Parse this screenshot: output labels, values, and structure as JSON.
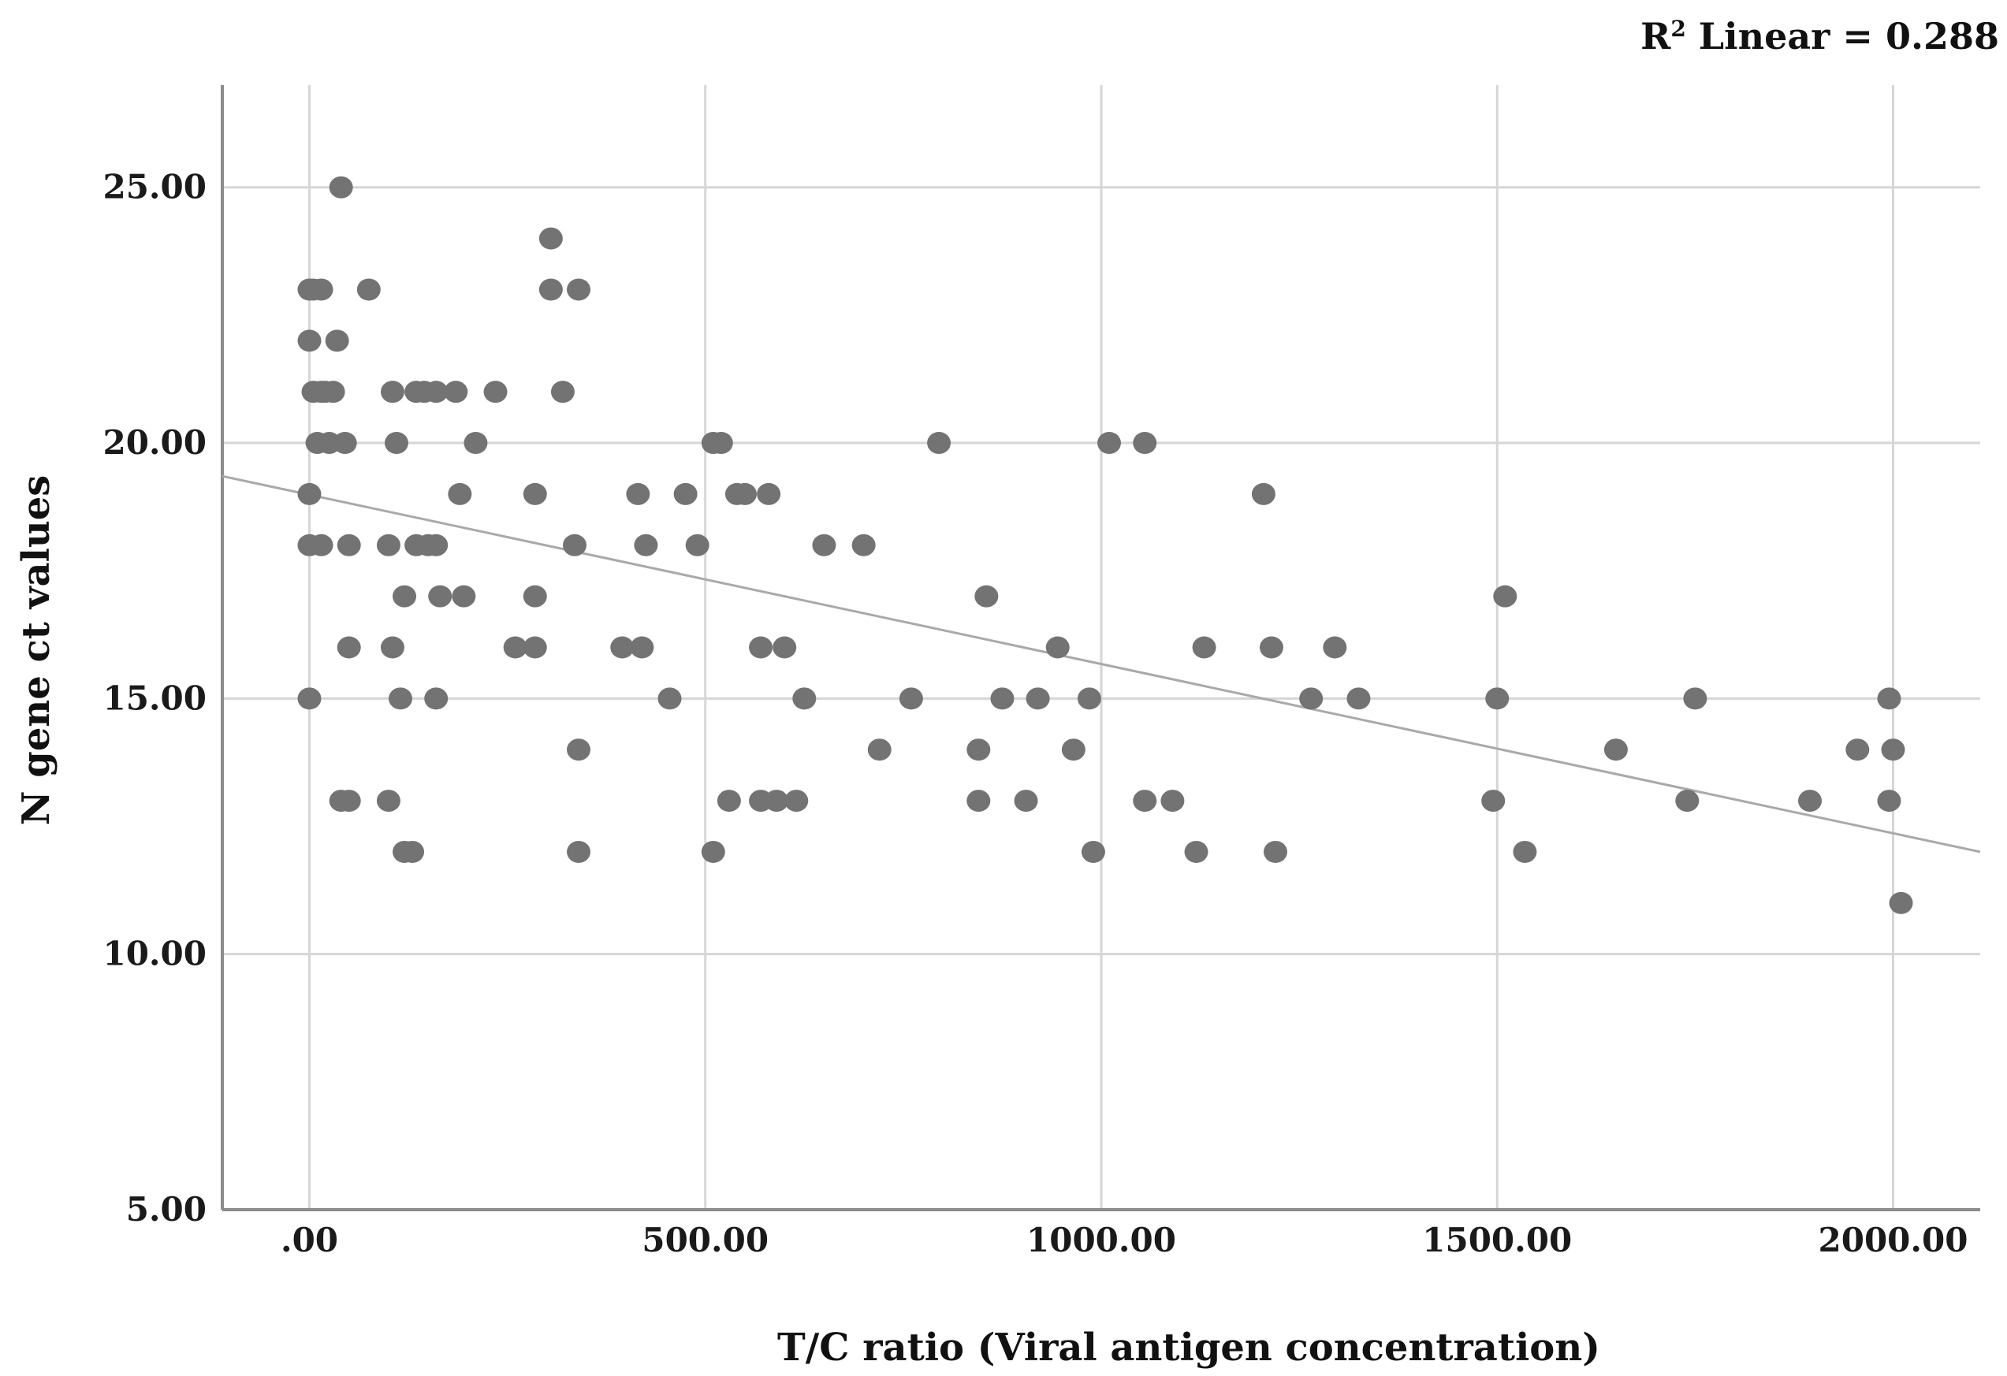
{
  "chart_data": {
    "type": "scatter",
    "title": "",
    "xlabel": "T/C ratio (Viral antigen concentration)",
    "ylabel": "N gene ct values",
    "xlim": [
      -110,
      2110
    ],
    "ylim": [
      5,
      27
    ],
    "xticks": [
      0,
      500,
      1000,
      1500,
      2000
    ],
    "xtick_labels": [
      ".00",
      "500.00",
      "1000.00",
      "1500.00",
      "2000.00"
    ],
    "yticks": [
      5,
      10,
      15,
      20,
      25
    ],
    "ytick_labels": [
      "5.00",
      "10.00",
      "15.00",
      "20.00",
      "25.00"
    ],
    "grid": true,
    "annotation": {
      "prefix": "R",
      "superscript": "2",
      "text": " Linear = 0.288"
    },
    "fit_line": {
      "x1": -110,
      "y1": 19.35,
      "x2": 2110,
      "y2": 12.0
    },
    "points": [
      {
        "x": 0,
        "y": 23
      },
      {
        "x": 5,
        "y": 23
      },
      {
        "x": 15,
        "y": 23
      },
      {
        "x": 75,
        "y": 23
      },
      {
        "x": 0,
        "y": 22
      },
      {
        "x": 35,
        "y": 22
      },
      {
        "x": 5,
        "y": 21
      },
      {
        "x": 15,
        "y": 21
      },
      {
        "x": 20,
        "y": 21
      },
      {
        "x": 30,
        "y": 21
      },
      {
        "x": 105,
        "y": 21
      },
      {
        "x": 10,
        "y": 20
      },
      {
        "x": 25,
        "y": 20
      },
      {
        "x": 45,
        "y": 20
      },
      {
        "x": 110,
        "y": 20
      },
      {
        "x": 0,
        "y": 19
      },
      {
        "x": 0,
        "y": 18
      },
      {
        "x": 15,
        "y": 18
      },
      {
        "x": 50,
        "y": 18
      },
      {
        "x": 100,
        "y": 18
      },
      {
        "x": 0,
        "y": 15
      },
      {
        "x": 40,
        "y": 25
      },
      {
        "x": 50,
        "y": 16
      },
      {
        "x": 40,
        "y": 13
      },
      {
        "x": 50,
        "y": 13
      },
      {
        "x": 100,
        "y": 13
      },
      {
        "x": 105,
        "y": 16
      },
      {
        "x": 115,
        "y": 15
      },
      {
        "x": 120,
        "y": 17
      },
      {
        "x": 120,
        "y": 12
      },
      {
        "x": 130,
        "y": 12
      },
      {
        "x": 135,
        "y": 21
      },
      {
        "x": 145,
        "y": 21
      },
      {
        "x": 160,
        "y": 21
      },
      {
        "x": 185,
        "y": 21
      },
      {
        "x": 135,
        "y": 18
      },
      {
        "x": 150,
        "y": 18
      },
      {
        "x": 160,
        "y": 18
      },
      {
        "x": 160,
        "y": 15
      },
      {
        "x": 165,
        "y": 17
      },
      {
        "x": 190,
        "y": 19
      },
      {
        "x": 195,
        "y": 17
      },
      {
        "x": 210,
        "y": 20
      },
      {
        "x": 235,
        "y": 21
      },
      {
        "x": 260,
        "y": 16
      },
      {
        "x": 285,
        "y": 16
      },
      {
        "x": 285,
        "y": 17
      },
      {
        "x": 285,
        "y": 19
      },
      {
        "x": 305,
        "y": 24
      },
      {
        "x": 305,
        "y": 23
      },
      {
        "x": 320,
        "y": 21
      },
      {
        "x": 335,
        "y": 18
      },
      {
        "x": 340,
        "y": 14
      },
      {
        "x": 340,
        "y": 12
      },
      {
        "x": 340,
        "y": 23
      },
      {
        "x": 395,
        "y": 16
      },
      {
        "x": 415,
        "y": 19
      },
      {
        "x": 420,
        "y": 16
      },
      {
        "x": 425,
        "y": 18
      },
      {
        "x": 455,
        "y": 15
      },
      {
        "x": 475,
        "y": 19
      },
      {
        "x": 490,
        "y": 18
      },
      {
        "x": 510,
        "y": 12
      },
      {
        "x": 510,
        "y": 20
      },
      {
        "x": 520,
        "y": 20
      },
      {
        "x": 530,
        "y": 13
      },
      {
        "x": 540,
        "y": 19
      },
      {
        "x": 550,
        "y": 19
      },
      {
        "x": 570,
        "y": 16
      },
      {
        "x": 570,
        "y": 13
      },
      {
        "x": 580,
        "y": 19
      },
      {
        "x": 590,
        "y": 13
      },
      {
        "x": 600,
        "y": 16
      },
      {
        "x": 615,
        "y": 13
      },
      {
        "x": 625,
        "y": 15
      },
      {
        "x": 650,
        "y": 18
      },
      {
        "x": 700,
        "y": 18
      },
      {
        "x": 720,
        "y": 14
      },
      {
        "x": 760,
        "y": 15
      },
      {
        "x": 795,
        "y": 20
      },
      {
        "x": 845,
        "y": 14
      },
      {
        "x": 845,
        "y": 13
      },
      {
        "x": 855,
        "y": 17
      },
      {
        "x": 875,
        "y": 15
      },
      {
        "x": 905,
        "y": 13
      },
      {
        "x": 920,
        "y": 15
      },
      {
        "x": 945,
        "y": 16
      },
      {
        "x": 965,
        "y": 14
      },
      {
        "x": 985,
        "y": 15
      },
      {
        "x": 990,
        "y": 12
      },
      {
        "x": 1010,
        "y": 20
      },
      {
        "x": 1055,
        "y": 20
      },
      {
        "x": 1055,
        "y": 13
      },
      {
        "x": 1090,
        "y": 13
      },
      {
        "x": 1120,
        "y": 12
      },
      {
        "x": 1130,
        "y": 16
      },
      {
        "x": 1205,
        "y": 19
      },
      {
        "x": 1215,
        "y": 16
      },
      {
        "x": 1220,
        "y": 12
      },
      {
        "x": 1265,
        "y": 15
      },
      {
        "x": 1295,
        "y": 16
      },
      {
        "x": 1325,
        "y": 15
      },
      {
        "x": 1495,
        "y": 13
      },
      {
        "x": 1500,
        "y": 15
      },
      {
        "x": 1510,
        "y": 17
      },
      {
        "x": 1535,
        "y": 12
      },
      {
        "x": 1650,
        "y": 14
      },
      {
        "x": 1740,
        "y": 13
      },
      {
        "x": 1750,
        "y": 15
      },
      {
        "x": 1895,
        "y": 13
      },
      {
        "x": 1955,
        "y": 14
      },
      {
        "x": 1995,
        "y": 15
      },
      {
        "x": 1995,
        "y": 13
      },
      {
        "x": 2000,
        "y": 14
      },
      {
        "x": 2010,
        "y": 11
      }
    ]
  }
}
